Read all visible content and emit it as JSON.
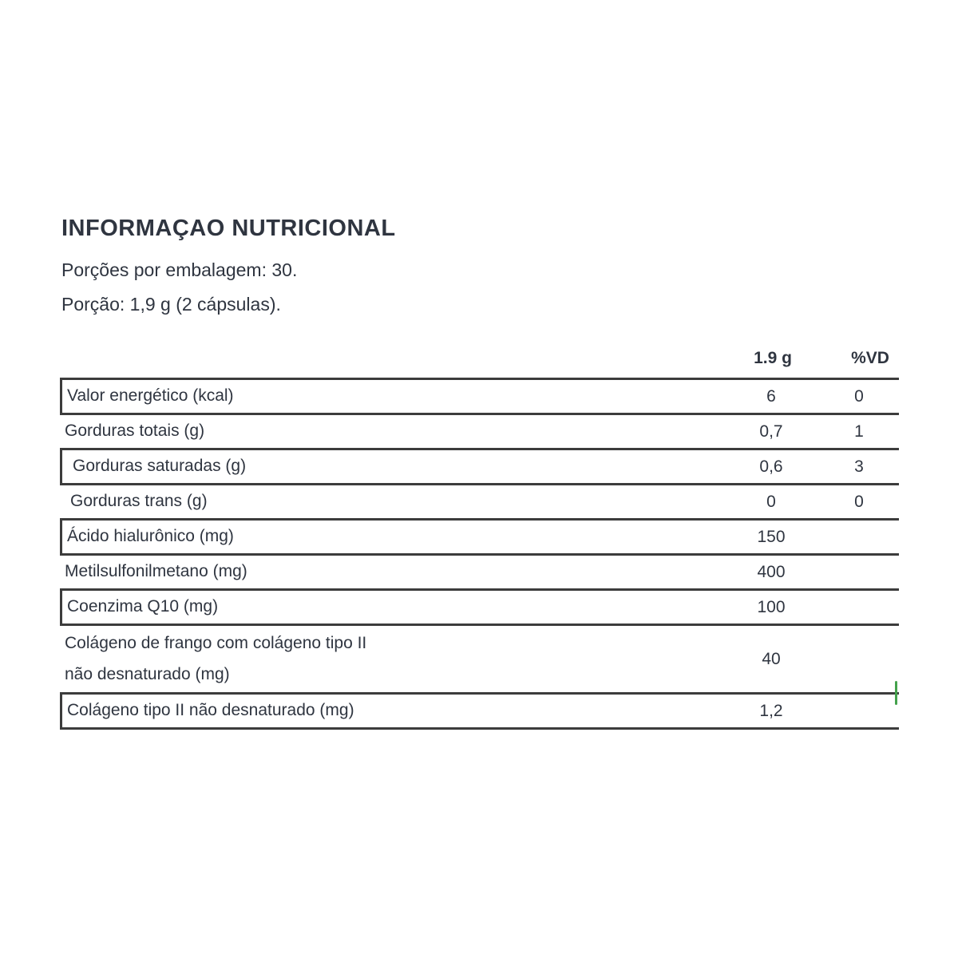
{
  "page": {
    "title": "INFORMAÇAO NUTRICIONAL",
    "servings_line": "Porções por embalagem: 30.",
    "portion_line": "Porção: 1,9 g (2 cápsulas)."
  },
  "table": {
    "columns": {
      "amount": "1.9 g",
      "dv": "%VD"
    },
    "rows": [
      {
        "label": "Valor energético (kcal)",
        "amount": "6",
        "dv": "0",
        "boxed": true,
        "indent": false,
        "tall": false,
        "green_tick": false
      },
      {
        "label": "Gorduras totais (g)",
        "amount": "0,7",
        "dv": "1",
        "boxed": false,
        "indent": false,
        "tall": false,
        "green_tick": false
      },
      {
        "label": "Gorduras saturadas (g)",
        "amount": "0,6",
        "dv": "3",
        "boxed": true,
        "indent": true,
        "tall": false,
        "green_tick": false
      },
      {
        "label": "Gorduras trans (g)",
        "amount": "0",
        "dv": "0",
        "boxed": false,
        "indent": true,
        "tall": false,
        "green_tick": false
      },
      {
        "label": "Ácido hialurônico (mg)",
        "amount": "150",
        "dv": "",
        "boxed": true,
        "indent": false,
        "tall": false,
        "green_tick": false
      },
      {
        "label": "Metilsulfonilmetano (mg)",
        "amount": "400",
        "dv": "",
        "boxed": false,
        "indent": false,
        "tall": false,
        "green_tick": false
      },
      {
        "label": "Coenzima Q10 (mg)",
        "amount": "100",
        "dv": "",
        "boxed": true,
        "indent": false,
        "tall": false,
        "green_tick": false
      },
      {
        "label_lines": [
          "Colágeno de frango com colágeno tipo II",
          "não desnaturado (mg)"
        ],
        "amount": "40",
        "dv": "",
        "boxed": false,
        "indent": false,
        "tall": true,
        "green_tick": false
      },
      {
        "label": "Colágeno tipo II não desnaturado (mg)",
        "amount": "1,2",
        "dv": "",
        "boxed": true,
        "indent": false,
        "tall": false,
        "green_tick": true
      }
    ]
  },
  "colors": {
    "text": "#2f3540",
    "line": "#3c3c3c",
    "green_tick": "#44a24c"
  }
}
